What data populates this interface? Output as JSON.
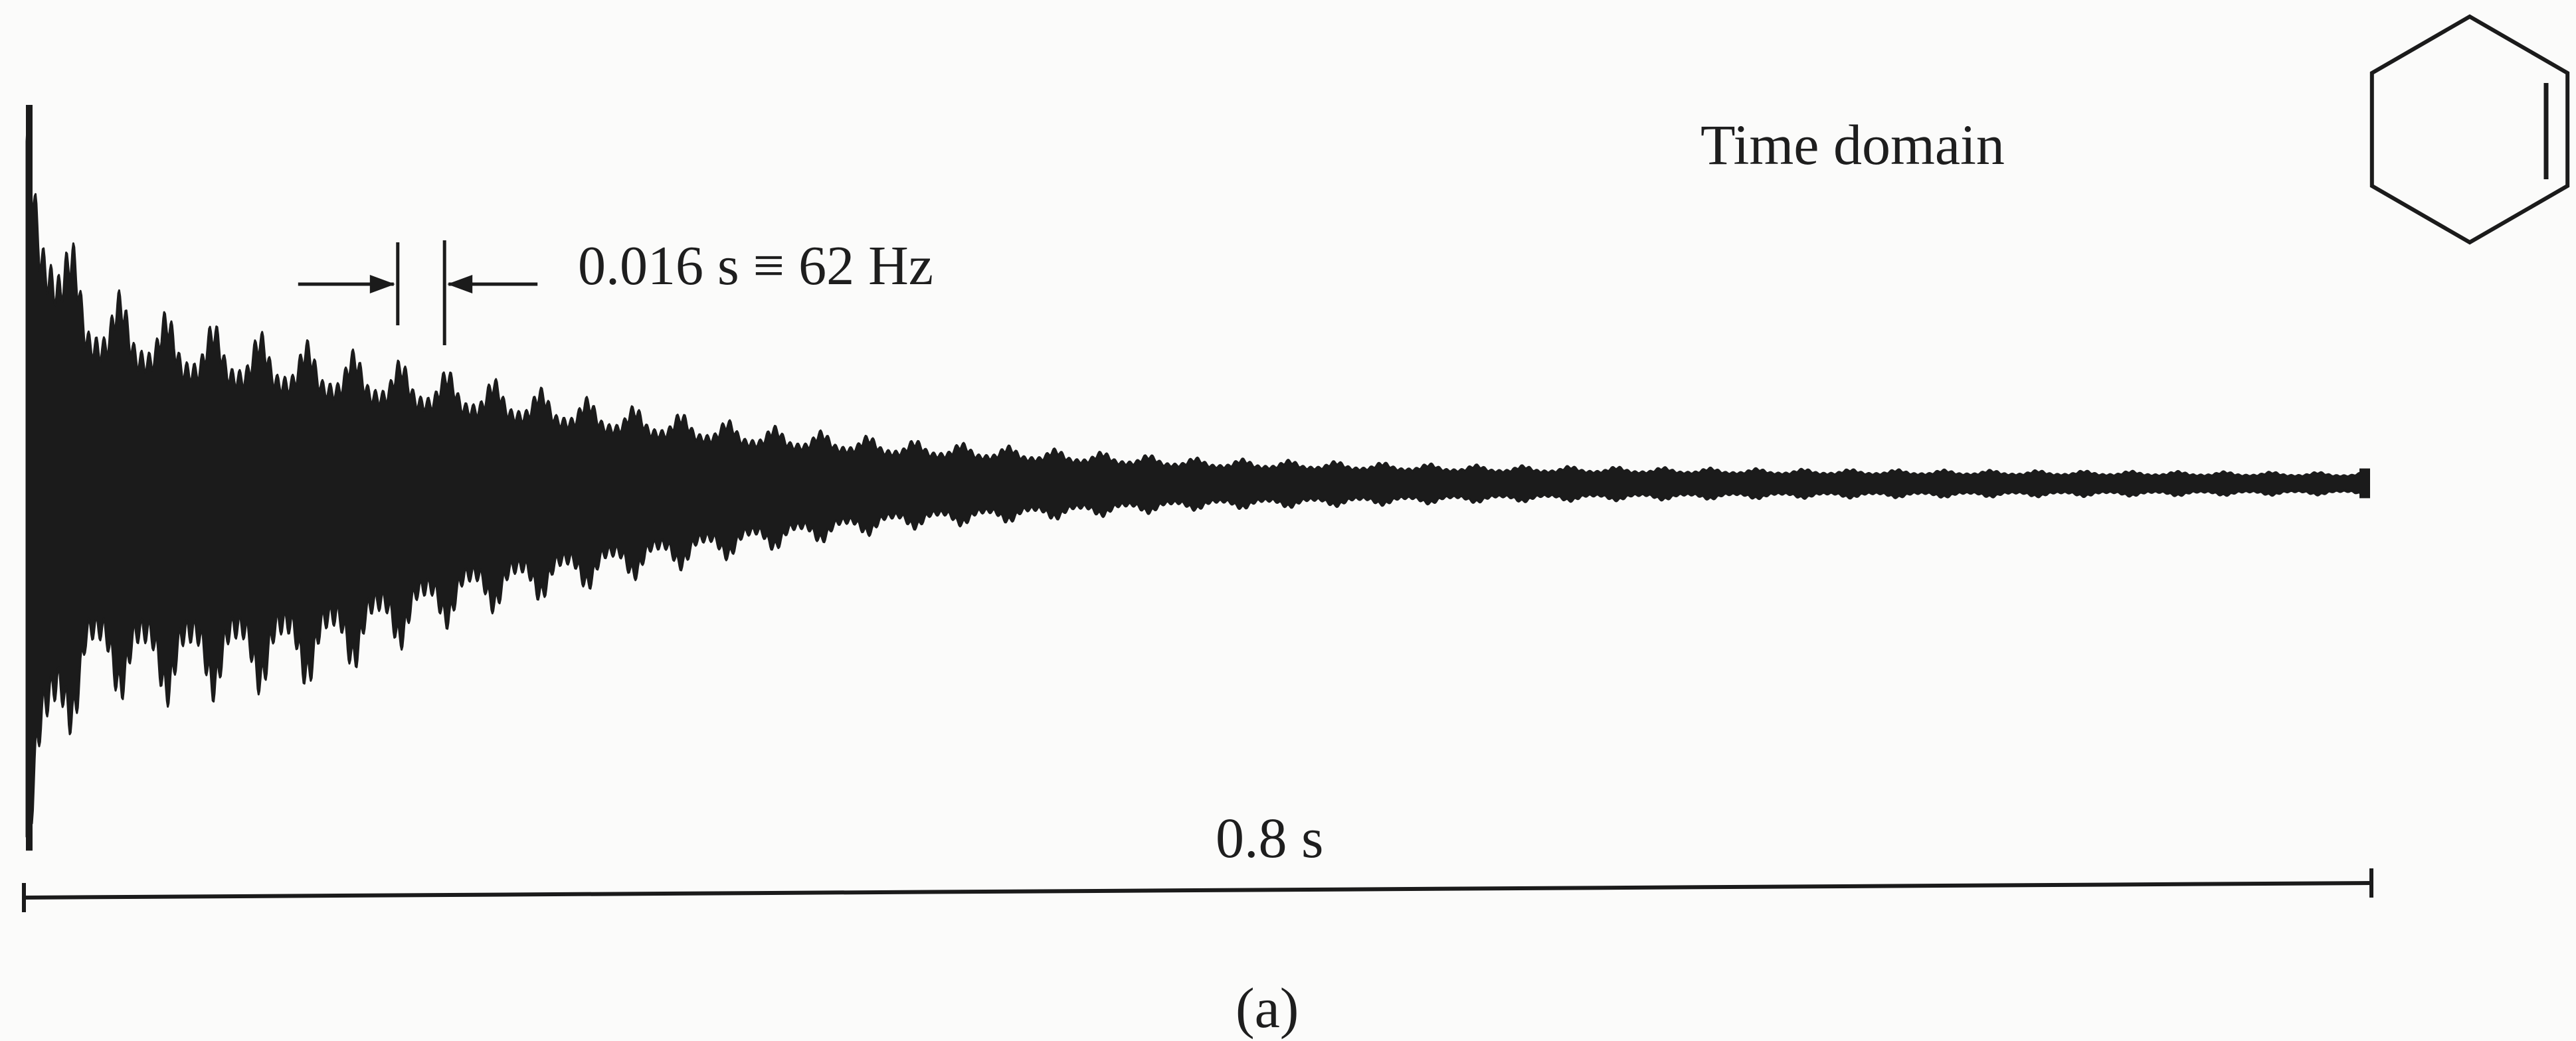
{
  "chart_data": {
    "type": "line",
    "title": "Time domain",
    "xlabel": "",
    "ylabel": "",
    "xlim": [
      0,
      0.8
    ],
    "ylim": [
      -1,
      1
    ],
    "grid": false,
    "series": [
      {
        "kind": "damped-oscillation envelope",
        "x": [
          0,
          0.02,
          0.05,
          0.1,
          0.15,
          0.2,
          0.25,
          0.3,
          0.4,
          0.5,
          0.6,
          0.7,
          0.8
        ],
        "upper": [
          1.0,
          0.56,
          0.46,
          0.38,
          0.3,
          0.22,
          0.16,
          0.12,
          0.07,
          0.05,
          0.04,
          0.035,
          0.03
        ],
        "lower": [
          -0.97,
          -0.55,
          -0.57,
          -0.52,
          -0.35,
          -0.26,
          -0.18,
          -0.12,
          -0.07,
          -0.05,
          -0.04,
          -0.035,
          -0.03
        ]
      }
    ],
    "period_s": 0.016,
    "frequency_hz": 62,
    "total_duration_s": 0.8
  },
  "labels": {
    "title": "Time domain",
    "period_annotation": "0.016 s ≡ 62 Hz",
    "duration_annotation": "0.8 s",
    "caption": "(a)"
  },
  "colors": {
    "ink": "#1b1b1b",
    "paper": "#fbfbfa"
  },
  "icons": {
    "structure": "benzene-ring-icon"
  }
}
